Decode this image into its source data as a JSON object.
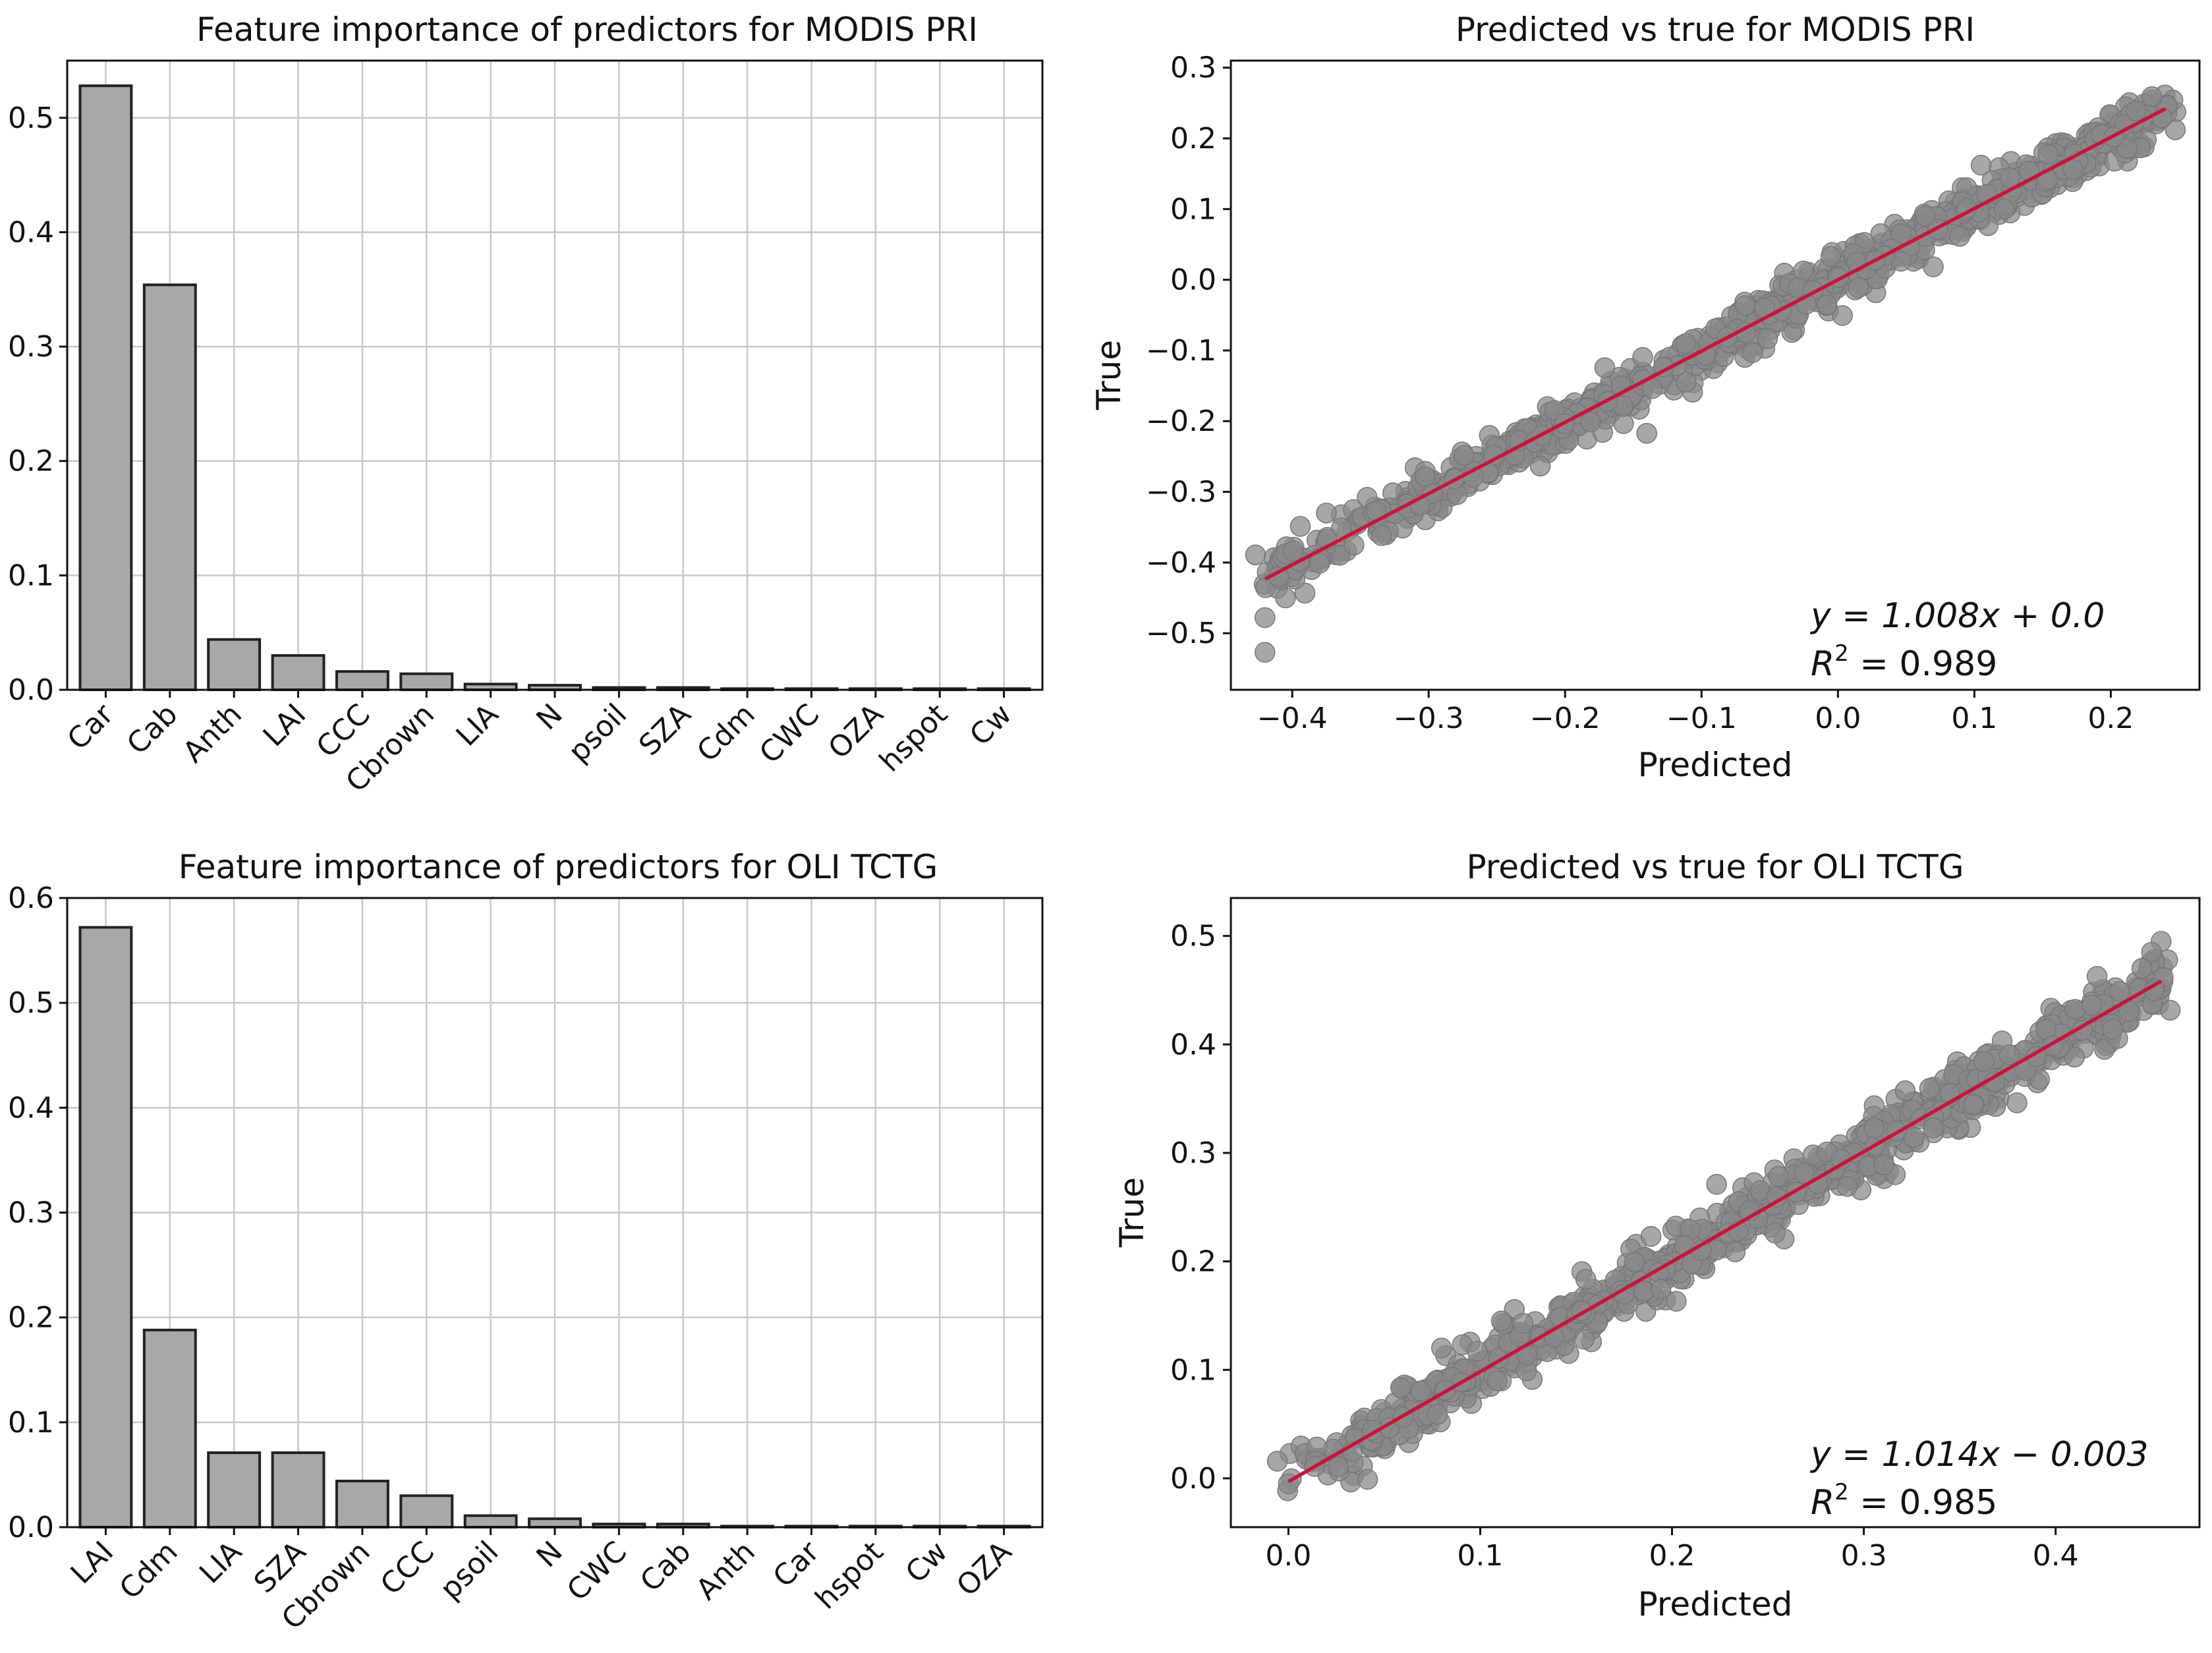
{
  "chart_data": [
    {
      "type": "bar",
      "title": "Feature importance of predictors for MODIS PRI",
      "categories": [
        "Car",
        "Cab",
        "Anth",
        "LAI",
        "CCC",
        "Cbrown",
        "LIA",
        "N",
        "psoil",
        "SZA",
        "Cdm",
        "CWC",
        "OZA",
        "hspot",
        "Cw"
      ],
      "values": [
        0.528,
        0.354,
        0.044,
        0.03,
        0.016,
        0.014,
        0.005,
        0.004,
        0.002,
        0.002,
        0.001,
        0.001,
        0.001,
        0.001,
        0.001
      ],
      "ylim": [
        0,
        0.55
      ],
      "yticks": [
        0.0,
        0.1,
        0.2,
        0.3,
        0.4,
        0.5
      ],
      "ytick_labels": [
        "0.0",
        "0.1",
        "0.2",
        "0.3",
        "0.4",
        "0.5"
      ],
      "xlabel": "",
      "ylabel": "",
      "grid": true
    },
    {
      "type": "scatter",
      "title": "Predicted vs true for MODIS PRI",
      "xlabel": "Predicted",
      "ylabel": "True",
      "xlim": [
        -0.445,
        0.265
      ],
      "ylim": [
        -0.58,
        0.31
      ],
      "xticks": [
        -0.4,
        -0.3,
        -0.2,
        -0.1,
        0.0,
        0.1,
        0.2
      ],
      "xtick_labels": [
        "−0.4",
        "−0.3",
        "−0.2",
        "−0.1",
        "0.0",
        "0.1",
        "0.2"
      ],
      "yticks": [
        -0.5,
        -0.4,
        -0.3,
        -0.2,
        -0.1,
        0.0,
        0.1,
        0.2,
        0.3
      ],
      "ytick_labels": [
        "−0.5",
        "−0.4",
        "−0.3",
        "−0.2",
        "−0.1",
        "0.0",
        "0.1",
        "0.2",
        "0.3"
      ],
      "fit": {
        "slope": 1.008,
        "intercept": 0.0,
        "x_range": [
          -0.42,
          0.24
        ]
      },
      "points": {
        "x_range": [
          -0.42,
          0.24
        ],
        "spread": 0.016,
        "count": 900,
        "outliers": [
          [
            -0.42,
            -0.527
          ],
          [
            -0.42,
            -0.478
          ],
          [
            -0.405,
            -0.45
          ],
          [
            -0.41,
            -0.42
          ],
          [
            -0.375,
            -0.33
          ]
        ]
      },
      "equation": "y = 1.008x + 0.0",
      "r2_label": "R",
      "r2_sup": "2",
      "r2_value": " = 0.989"
    },
    {
      "type": "bar",
      "title": "Feature importance of predictors for OLI TCTG",
      "categories": [
        "LAI",
        "Cdm",
        "LIA",
        "SZA",
        "Cbrown",
        "CCC",
        "psoil",
        "N",
        "CWC",
        "Cab",
        "Anth",
        "Car",
        "hspot",
        "Cw",
        "OZA"
      ],
      "values": [
        0.572,
        0.188,
        0.071,
        0.071,
        0.044,
        0.03,
        0.011,
        0.008,
        0.003,
        0.003,
        0.001,
        0.001,
        0.001,
        0.001,
        0.001
      ],
      "ylim": [
        0,
        0.6
      ],
      "yticks": [
        0.0,
        0.1,
        0.2,
        0.3,
        0.4,
        0.5,
        0.6
      ],
      "ytick_labels": [
        "0.0",
        "0.1",
        "0.2",
        "0.3",
        "0.4",
        "0.5",
        "0.6"
      ],
      "xlabel": "",
      "ylabel": "",
      "grid": true
    },
    {
      "type": "scatter",
      "title": "Predicted vs true for OLI TCTG",
      "xlabel": "Predicted",
      "ylabel": "True",
      "xlim": [
        -0.03,
        0.475
      ],
      "ylim": [
        -0.045,
        0.535
      ],
      "xticks": [
        0.0,
        0.1,
        0.2,
        0.3,
        0.4
      ],
      "xtick_labels": [
        "0.0",
        "0.1",
        "0.2",
        "0.3",
        "0.4"
      ],
      "yticks": [
        0.0,
        0.1,
        0.2,
        0.3,
        0.4,
        0.5
      ],
      "ytick_labels": [
        "0.0",
        "0.1",
        "0.2",
        "0.3",
        "0.4",
        "0.5"
      ],
      "fit": {
        "slope": 1.014,
        "intercept": -0.003,
        "x_range": [
          0.0,
          0.455
        ]
      },
      "points": {
        "x_range": [
          0.0,
          0.455
        ],
        "spread": 0.013,
        "count": 900,
        "outliers": [
          [
            0.455,
            0.495
          ],
          [
            0.45,
            0.485
          ],
          [
            0.445,
            0.47
          ],
          [
            0.0,
            -0.005
          ]
        ]
      },
      "equation": "y = 1.014x − 0.003",
      "r2_label": "R",
      "r2_sup": "2",
      "r2_value": " = 0.985"
    }
  ]
}
